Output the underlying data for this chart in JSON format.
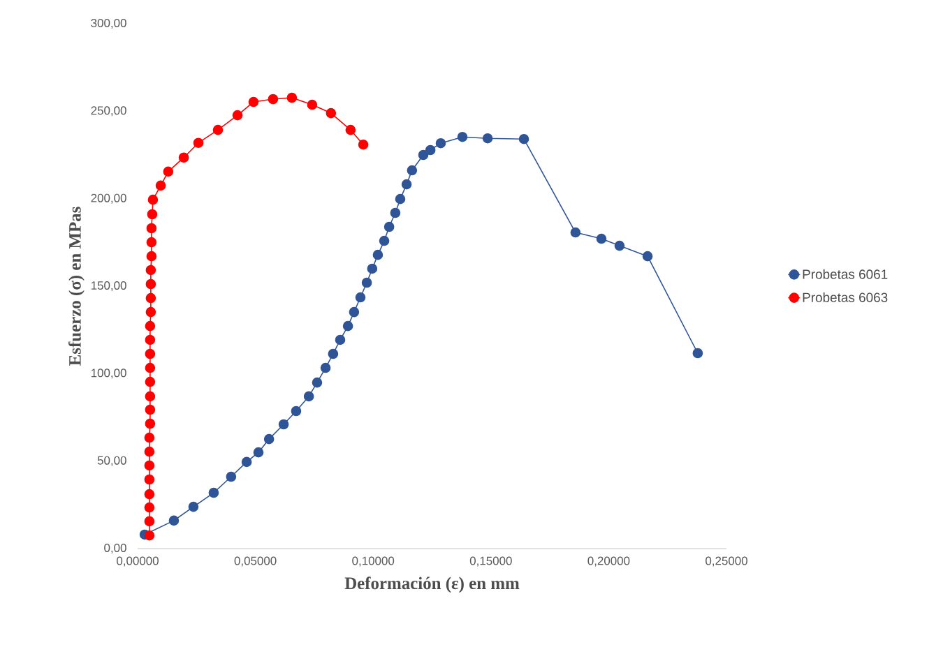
{
  "chart_data": {
    "type": "line",
    "xlabel": "Deformación (ε) en mm",
    "ylabel": "Esfuerzo (σ) en MPas",
    "xlim": [
      0,
      0.25
    ],
    "ylim": [
      0,
      300
    ],
    "xticks": [
      {
        "value": 0,
        "label": "0,00000"
      },
      {
        "value": 0.05,
        "label": "0,05000"
      },
      {
        "value": 0.1,
        "label": "0,10000"
      },
      {
        "value": 0.15,
        "label": "0,15000"
      },
      {
        "value": 0.2,
        "label": "0,20000"
      },
      {
        "value": 0.25,
        "label": "0,25000"
      }
    ],
    "yticks": [
      {
        "value": 0,
        "label": "0,00"
      },
      {
        "value": 50,
        "label": "50,00"
      },
      {
        "value": 100,
        "label": "100,00"
      },
      {
        "value": 150,
        "label": "150,00"
      },
      {
        "value": 200,
        "label": "200,00"
      },
      {
        "value": 250,
        "label": "250,00"
      },
      {
        "value": 300,
        "label": "300,00"
      }
    ],
    "grid": false,
    "legend": "right",
    "marker": "circle",
    "line_style": "solid",
    "series": [
      {
        "name": "Probetas 6061",
        "color": "#2f5597",
        "x": [
          0.003,
          0.0154,
          0.0237,
          0.0323,
          0.0397,
          0.0463,
          0.0513,
          0.0558,
          0.062,
          0.0673,
          0.0727,
          0.0762,
          0.0798,
          0.083,
          0.086,
          0.0893,
          0.0919,
          0.0946,
          0.0973,
          0.0996,
          0.102,
          0.1047,
          0.1068,
          0.1094,
          0.1115,
          0.1142,
          0.1165,
          0.1213,
          0.1243,
          0.1287,
          0.1379,
          0.1486,
          0.164,
          0.1859,
          0.1969,
          0.2046,
          0.2165,
          0.2378
        ],
        "values": [
          8.0,
          16.0,
          23.9,
          31.9,
          41.1,
          49.5,
          55.0,
          62.6,
          71.0,
          78.6,
          87.0,
          94.9,
          103.3,
          111.3,
          119.3,
          127.2,
          135.2,
          143.6,
          152.0,
          160.0,
          167.9,
          175.9,
          183.9,
          191.9,
          199.8,
          208.2,
          216.2,
          225.0,
          227.8,
          231.7,
          235.3,
          234.5,
          234.1,
          180.7,
          177.1,
          173.1,
          167.1,
          111.7
        ]
      },
      {
        "name": "Probetas 6063",
        "color": "#ff0000",
        "x": [
          0.005,
          0.005,
          0.005,
          0.005,
          0.005,
          0.005,
          0.005,
          0.005,
          0.0053,
          0.0053,
          0.0053,
          0.0053,
          0.0053,
          0.0053,
          0.0053,
          0.0053,
          0.0056,
          0.0056,
          0.0056,
          0.0056,
          0.0059,
          0.0059,
          0.0059,
          0.0062,
          0.0065,
          0.0098,
          0.013,
          0.0196,
          0.0258,
          0.0341,
          0.0424,
          0.0492,
          0.0575,
          0.0655,
          0.0741,
          0.0821,
          0.0904,
          0.0958
        ],
        "values": [
          7.5,
          15.6,
          23.5,
          31.1,
          39.5,
          47.5,
          55.4,
          63.4,
          71.4,
          79.4,
          87.0,
          95.3,
          103.3,
          111.3,
          119.3,
          127.2,
          135.2,
          143.2,
          151.2,
          159.2,
          167.1,
          175.1,
          183.1,
          191.1,
          199.4,
          207.5,
          215.5,
          223.5,
          231.9,
          239.3,
          247.7,
          255.3,
          256.9,
          257.7,
          253.7,
          248.9,
          239.3,
          230.9
        ]
      }
    ]
  }
}
